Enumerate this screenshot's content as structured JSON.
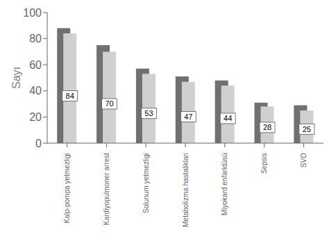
{
  "chart_data": {
    "type": "bar",
    "ylabel": "Sayı",
    "categories": [
      "Kalp-pompa yetmezligi",
      "Kardiyopulmoner arrest",
      "Solunum yetmezligi",
      "Metabolizma hastaliklari",
      "Miyokard enfarktüsü",
      "Sepsis",
      "SVO"
    ],
    "series": [
      {
        "color": "#707070",
        "values": [
          88,
          75,
          57,
          51,
          48,
          31,
          29
        ]
      },
      {
        "color": "#d0d0d0",
        "values": [
          84,
          70,
          53,
          47,
          44,
          28,
          25
        ],
        "data_labels": true
      }
    ],
    "ylim": [
      0,
      100
    ],
    "yticks": [
      0,
      20,
      40,
      60,
      80,
      100
    ],
    "grid": false
  }
}
